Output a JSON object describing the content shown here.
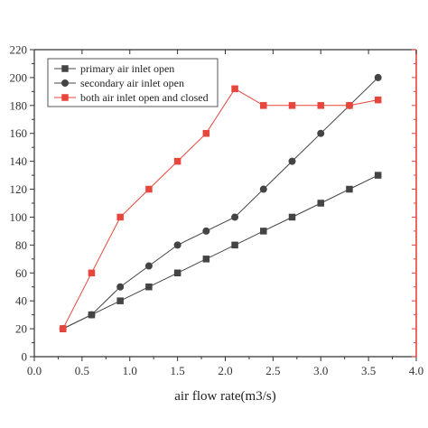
{
  "chart_data": {
    "type": "line",
    "title": "",
    "xlabel": "air flow rate(m3/s)",
    "ylabel": "",
    "xlim": [
      0,
      4
    ],
    "ylim": [
      0,
      220
    ],
    "x_ticks": [
      "0.0",
      "0.5",
      "1.0",
      "1.5",
      "2.0",
      "2.5",
      "3.0",
      "3.5",
      "4.0"
    ],
    "y_ticks": [
      "0",
      "20",
      "40",
      "60",
      "80",
      "100",
      "120",
      "140",
      "160",
      "180",
      "200",
      "220"
    ],
    "grid": false,
    "legend_position": "top-left",
    "series": [
      {
        "name": "primary air inlet open",
        "color": "#444444",
        "marker": "square",
        "points": [
          [
            0.3,
            20
          ],
          [
            0.6,
            30
          ],
          [
            0.9,
            40
          ],
          [
            1.2,
            50
          ],
          [
            1.5,
            60
          ],
          [
            1.8,
            70
          ],
          [
            2.1,
            80
          ],
          [
            2.4,
            90
          ],
          [
            2.7,
            100
          ],
          [
            3.0,
            110
          ],
          [
            3.3,
            120
          ],
          [
            3.6,
            130
          ]
        ]
      },
      {
        "name": "secondary air inlet open",
        "color": "#444444",
        "marker": "circle",
        "points": [
          [
            0.3,
            20
          ],
          [
            0.6,
            30
          ],
          [
            0.9,
            50
          ],
          [
            1.2,
            65
          ],
          [
            1.5,
            80
          ],
          [
            1.8,
            90
          ],
          [
            2.1,
            100
          ],
          [
            2.4,
            120
          ],
          [
            2.7,
            140
          ],
          [
            3.0,
            160
          ],
          [
            3.3,
            180
          ],
          [
            3.6,
            200
          ]
        ]
      },
      {
        "name": "both air inlet open and closed",
        "color": "#e8453c",
        "marker": "square",
        "points": [
          [
            0.3,
            20
          ],
          [
            0.6,
            60
          ],
          [
            0.9,
            100
          ],
          [
            1.2,
            120
          ],
          [
            1.5,
            140
          ],
          [
            1.8,
            160
          ],
          [
            2.1,
            192
          ],
          [
            2.4,
            180
          ],
          [
            2.7,
            180
          ],
          [
            3.0,
            180
          ],
          [
            3.3,
            180
          ],
          [
            3.6,
            184
          ]
        ]
      }
    ],
    "colors": {
      "axis": "#333333",
      "right_axis": "#e8453c"
    }
  }
}
